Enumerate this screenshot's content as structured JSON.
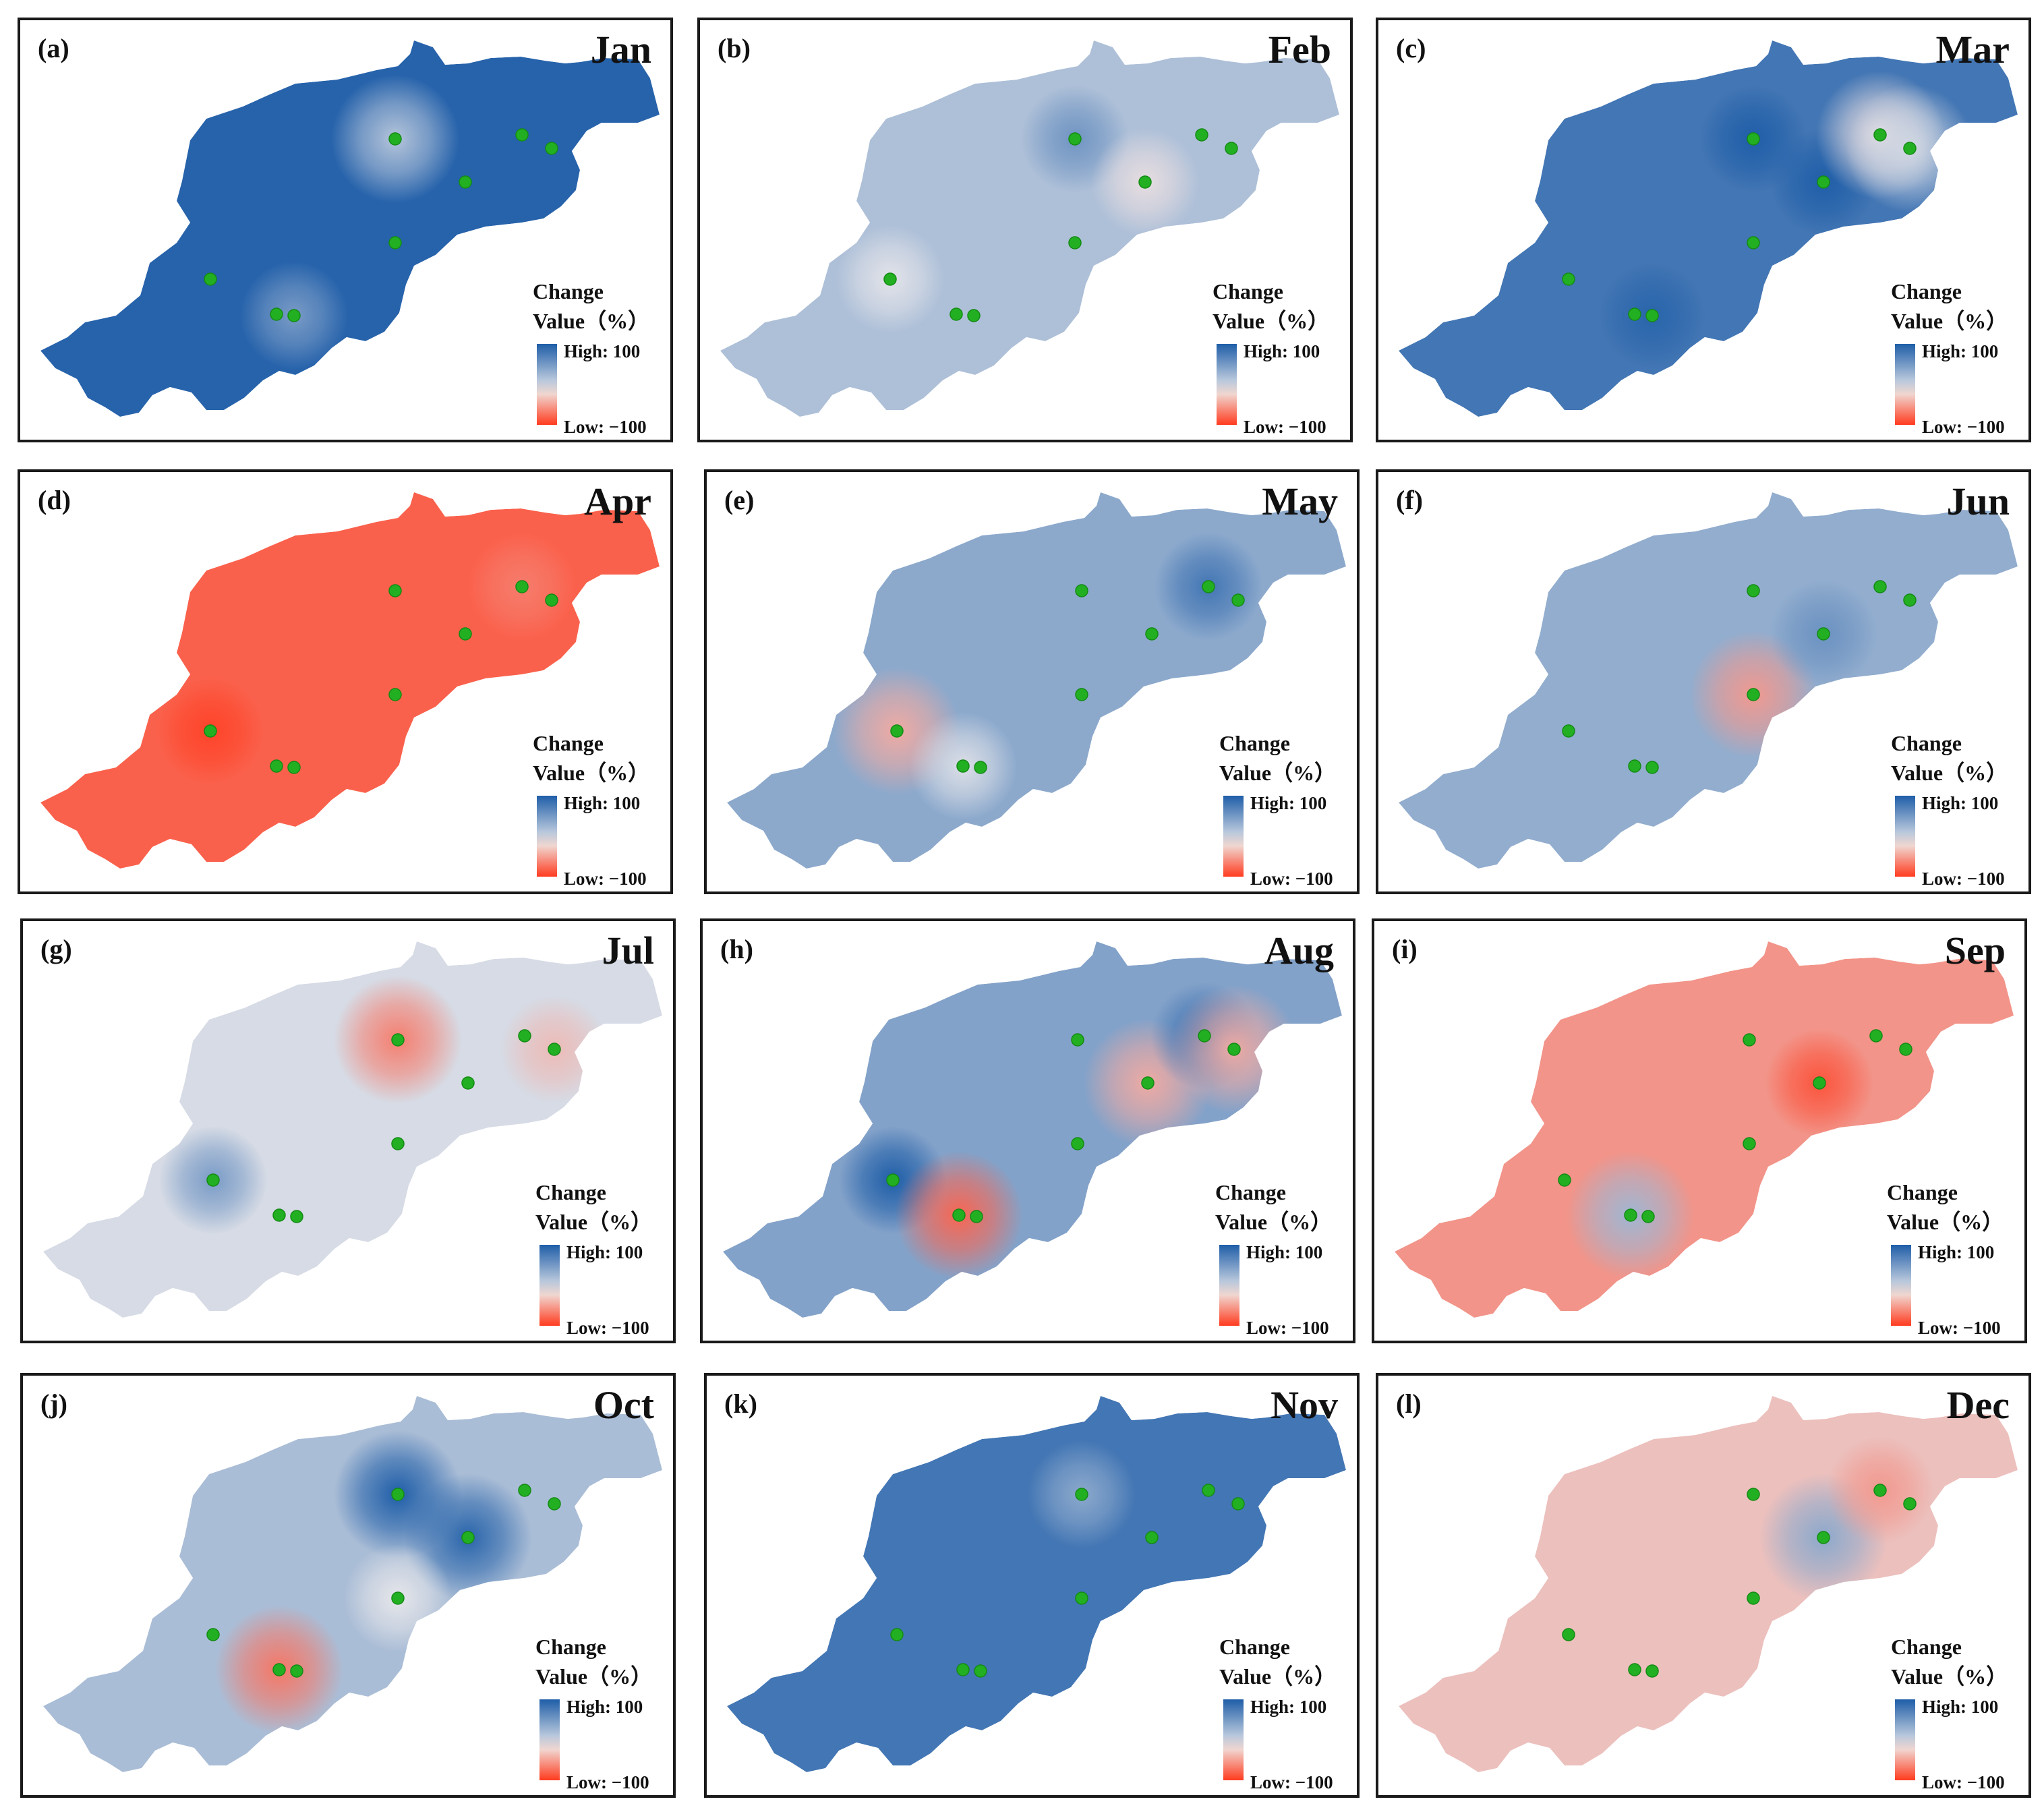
{
  "legend": {
    "title_line1": "Change",
    "title_line2": "Value（%）",
    "high_label": "High:",
    "high_value": "100",
    "low_label": "Low:",
    "low_value": "−100"
  },
  "colors": {
    "high": "#1f5ea8",
    "neutral": "#e6e6ea",
    "low": "#ff3b1f",
    "station": "#22b022"
  },
  "panels": [
    {
      "id": "a",
      "label": "(a)",
      "month": "Jan",
      "base": 0.96,
      "anomalies": [
        {
          "site": 0,
          "value": 0.25
        },
        {
          "site": 5,
          "value": 0.55
        }
      ]
    },
    {
      "id": "b",
      "label": "(b)",
      "month": "Feb",
      "base": 0.28,
      "anomalies": [
        {
          "site": 0,
          "value": 0.6
        },
        {
          "site": 3,
          "value": -0.05
        },
        {
          "site": 6,
          "value": 0.02
        }
      ]
    },
    {
      "id": "c",
      "label": "(c)",
      "month": "Mar",
      "base": 0.82,
      "anomalies": [
        {
          "site": 0,
          "value": 1.0
        },
        {
          "site": 3,
          "value": 1.0
        },
        {
          "site": 1,
          "value": -0.05
        },
        {
          "site": 2,
          "value": 0.1
        },
        {
          "site": 5,
          "value": 0.95
        }
      ]
    },
    {
      "id": "d",
      "label": "(d)",
      "month": "Apr",
      "base": -0.78,
      "anomalies": [
        {
          "site": 6,
          "value": -0.95
        },
        {
          "site": 1,
          "value": -0.62
        }
      ]
    },
    {
      "id": "e",
      "label": "(e)",
      "month": "May",
      "base": 0.45,
      "anomalies": [
        {
          "site": 1,
          "value": 0.82
        },
        {
          "site": 6,
          "value": -0.35
        },
        {
          "site": 7,
          "value": 0.05
        }
      ]
    },
    {
      "id": "f",
      "label": "(f)",
      "month": "Jun",
      "base": 0.42,
      "anomalies": [
        {
          "site": 4,
          "value": -0.45
        },
        {
          "site": 3,
          "value": 0.62
        }
      ]
    },
    {
      "id": "g",
      "label": "(g)",
      "month": "Jul",
      "base": 0.08,
      "anomalies": [
        {
          "site": 0,
          "value": -0.6
        },
        {
          "site": 6,
          "value": 0.55
        },
        {
          "site": 2,
          "value": -0.25
        }
      ]
    },
    {
      "id": "h",
      "label": "(h)",
      "month": "Aug",
      "base": 0.5,
      "anomalies": [
        {
          "site": 6,
          "value": 1.0
        },
        {
          "site": 7,
          "value": -0.75
        },
        {
          "site": 3,
          "value": -0.35
        },
        {
          "site": 1,
          "value": 0.85
        },
        {
          "site": 2,
          "value": -0.35
        }
      ]
    },
    {
      "id": "i",
      "label": "(i)",
      "month": "Sep",
      "base": -0.48,
      "anomalies": [
        {
          "site": 3,
          "value": -0.85
        },
        {
          "site": 7,
          "value": 0.35
        }
      ]
    },
    {
      "id": "j",
      "label": "(j)",
      "month": "Oct",
      "base": 0.3,
      "anomalies": [
        {
          "site": 0,
          "value": 1.0
        },
        {
          "site": 3,
          "value": 0.95
        },
        {
          "site": 7,
          "value": -0.65
        },
        {
          "site": 4,
          "value": 0.0
        }
      ]
    },
    {
      "id": "k",
      "label": "(k)",
      "month": "Nov",
      "base": 0.82,
      "anomalies": [
        {
          "site": 0,
          "value": 0.45
        }
      ]
    },
    {
      "id": "l",
      "label": "(l)",
      "month": "Dec",
      "base": -0.22,
      "anomalies": [
        {
          "site": 3,
          "value": 0.45
        },
        {
          "site": 1,
          "value": -0.45
        }
      ]
    }
  ]
}
